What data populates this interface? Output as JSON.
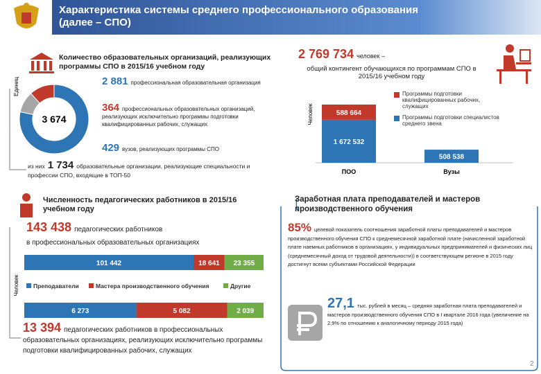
{
  "header": {
    "title": "Характеристика системы среднего профессионального образования (далее – СПО)"
  },
  "organizations": {
    "heading": "Количество образовательных организаций, реализующих программы СПО в 2015/16 учебном году",
    "axis_label": "Единиц",
    "total": "3 674",
    "items": [
      {
        "value": "2 881",
        "text": "профессиональная образовательная организация"
      },
      {
        "value": "364",
        "text": "профессиональных образовательных организаций, реализующих исключительно программы подготовки квалифицированных рабочих, служащих"
      },
      {
        "value": "429",
        "text": "вузов, реализующих программы СПО"
      }
    ],
    "top50": {
      "prefix": "из них",
      "value": "1 734",
      "text": "образовательные организации, реализующие специальности и профессии СПО, входящие в ТОП-50"
    },
    "chart": {
      "type": "pie",
      "donut": true,
      "values": [
        2881,
        364,
        429
      ],
      "colors": [
        "#2e75b6",
        "#a6a6a6",
        "#c0392b"
      ]
    }
  },
  "students": {
    "value": "2 769 734",
    "unit": "человек –",
    "text": "общий контингент обучающихся по программам СПО в 2015/16 учебном году",
    "chart": {
      "type": "bar",
      "stacked": true,
      "axis_label": "Человек",
      "categories": [
        "ПОО",
        "Вузы"
      ],
      "series": [
        {
          "name": "Программы подготовки специалистов среднего звена",
          "color": "#2e75b6",
          "values": [
            1672532,
            508538
          ],
          "value_labels": [
            "1 672 532",
            "508 538"
          ]
        },
        {
          "name": "Программы подготовки квалифицированных рабочих, служащих",
          "color": "#c0392b",
          "values": [
            588664,
            null
          ],
          "value_labels": [
            "588 664",
            null
          ]
        }
      ]
    }
  },
  "staff": {
    "heading": "Численность педагогических работников в 2015/16 учебном году",
    "total": "143 438",
    "total_text": "педагогических работников",
    "total_text2": "в профессиональных образовательных организациях",
    "total2": "13 394",
    "total2_text": "педагогических работников в профессиональных образовательных организациях, реализующих исключительно программы подготовки квалифицированных рабочих, служащих",
    "chart": {
      "type": "bar",
      "orientation": "horizontal",
      "stacked": true,
      "axis_label": "Человек",
      "series": [
        {
          "name": "Преподаватели",
          "color": "#2e75b6",
          "values": [
            101442,
            6273
          ],
          "value_labels": [
            "101 442",
            "6 273"
          ]
        },
        {
          "name": "Мастера производственного обучения",
          "color": "#c0392b",
          "values": [
            18641,
            5082
          ],
          "value_labels": [
            "18 641",
            "5 082"
          ]
        },
        {
          "name": "Другие",
          "color": "#70ad47",
          "values": [
            23355,
            2039
          ],
          "value_labels": [
            "23 355",
            "2 039"
          ]
        }
      ]
    }
  },
  "salary": {
    "heading": "Заработная плата преподавателей и мастеров производственного обучения",
    "target_value": "85%",
    "target_text": "целевой показатель соотношения заработной платы преподавателей и мастеров производственного обучения СПО к среднемесячной заработной плате (начисленной заработной плате наемных работников в организациях, у индивидуальных предпринимателей и физических лиц (среднемесячный доход от трудовой деятельности)) в соответствующем регионе в 2015 году достигнут всеми субъектами Российской Федерации",
    "avg_value": "27,1",
    "avg_text": "тыс. рублей в месяц – средняя заработная плата преподавателей и мастеров производственного обучения СПО в I квартале 2016 года (увеличение на 2,9% по отношению к аналогичному периоду 2015 года)"
  },
  "page_number": "2"
}
